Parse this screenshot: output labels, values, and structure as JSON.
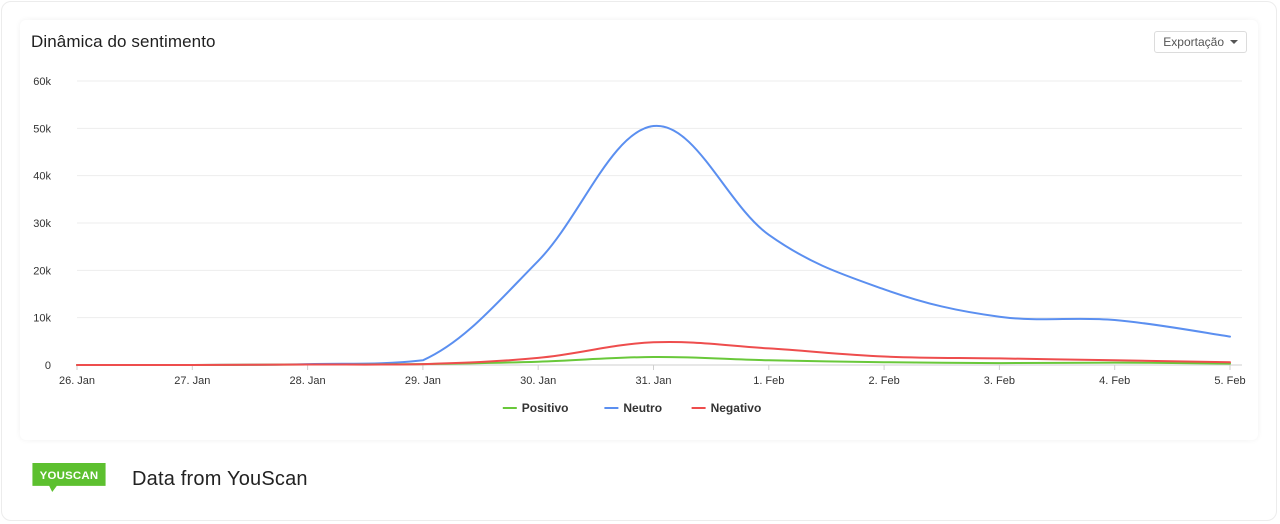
{
  "card": {
    "title": "Dinâmica do sentimento",
    "export_label": "Exportação"
  },
  "chart_data": {
    "type": "line",
    "x": [
      "26. Jan",
      "27. Jan",
      "28. Jan",
      "29. Jan",
      "30. Jan",
      "31. Jan",
      "1. Feb",
      "2. Feb",
      "3. Feb",
      "4. Feb",
      "5. Feb"
    ],
    "ylim": [
      0,
      60000
    ],
    "yticks": [
      0,
      10000,
      20000,
      30000,
      40000,
      50000,
      60000
    ],
    "ytick_labels": [
      "0",
      "10k",
      "20k",
      "30k",
      "40k",
      "50k",
      "60k"
    ],
    "grid": true,
    "legend_position": "bottom",
    "series": [
      {
        "name": "Positivo",
        "color": "#69c83a",
        "values": [
          0,
          0,
          100,
          200,
          700,
          1700,
          1000,
          600,
          400,
          500,
          300
        ]
      },
      {
        "name": "Neutro",
        "color": "#5b8ff0",
        "values": [
          0,
          0,
          200,
          1000,
          22000,
          50500,
          27500,
          16000,
          10200,
          9500,
          6000
        ]
      },
      {
        "name": "Negativo",
        "color": "#ee4d4d",
        "values": [
          0,
          0,
          100,
          200,
          1500,
          4800,
          3500,
          1800,
          1400,
          1000,
          600
        ]
      }
    ]
  },
  "footer": {
    "logo_text": "YOUSCAN",
    "logo_color": "#5dc02f",
    "text": "Data from YouScan"
  }
}
